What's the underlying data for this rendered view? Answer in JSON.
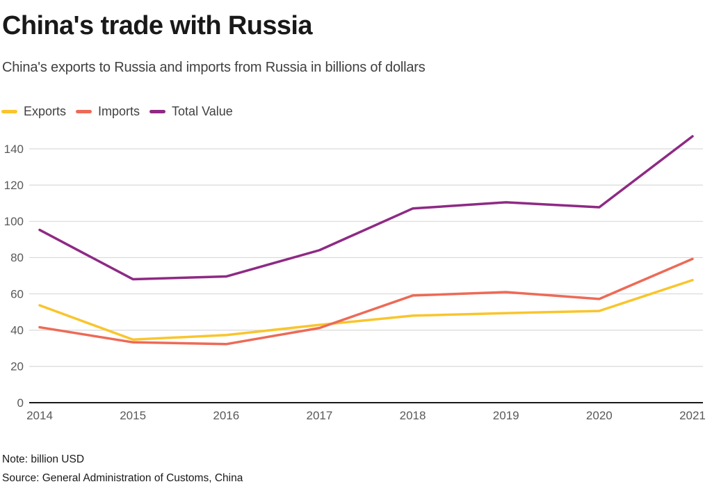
{
  "header": {
    "title": "China's trade with Russia",
    "subtitle": "China's exports to Russia and imports from Russia in billions of dollars"
  },
  "legend": [
    {
      "label": "Exports",
      "color": "#F9C52C"
    },
    {
      "label": "Imports",
      "color": "#ED6A56"
    },
    {
      "label": "Total Value",
      "color": "#8E2A84"
    }
  ],
  "footer": {
    "note": "Note: billion USD",
    "source": "Source: General Administration of Customs, China"
  },
  "chart_data": {
    "type": "line",
    "title": "China's trade with Russia",
    "subtitle": "China's exports to Russia and imports from Russia in billions of dollars",
    "x": [
      2014,
      2015,
      2016,
      2017,
      2018,
      2019,
      2020,
      2021
    ],
    "series": [
      {
        "name": "Exports",
        "color": "#F9C52C",
        "values": [
          53.7,
          34.8,
          37.3,
          42.9,
          48.0,
          49.4,
          50.6,
          67.6
        ]
      },
      {
        "name": "Imports",
        "color": "#ED6A56",
        "values": [
          41.6,
          33.3,
          32.3,
          41.2,
          59.1,
          61.0,
          57.2,
          79.3
        ]
      },
      {
        "name": "Total Value",
        "color": "#8E2A84",
        "values": [
          95.3,
          68.1,
          69.6,
          84.1,
          107.1,
          110.5,
          107.8,
          146.9
        ]
      }
    ],
    "xlabel": "",
    "ylabel": "",
    "ylim": [
      0,
      150
    ],
    "yticks": [
      0,
      20,
      40,
      60,
      80,
      100,
      120,
      140
    ],
    "grid": true,
    "legend_position": "top-left",
    "style": {
      "grid_color": "#D9D9D9",
      "axis_color": "#1A1A1A",
      "tick_label_color": "#595959",
      "line_width": 3.5
    }
  }
}
